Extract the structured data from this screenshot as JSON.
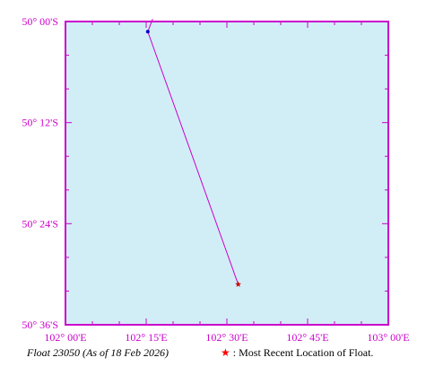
{
  "map": {
    "lon_range": [
      102.0,
      103.0
    ],
    "lat_range": [
      -50.6,
      -50.0
    ],
    "background_color": "#d1eef7",
    "frame_color": "#cc00cc",
    "x_tick_labels": [
      "102° 00'E",
      "102° 15'E",
      "102° 30'E",
      "102° 45'E",
      "103° 00'E"
    ],
    "x_tick_values": [
      102.0,
      102.25,
      102.5,
      102.75,
      103.0
    ],
    "y_tick_labels": [
      "50° 00'S",
      "50° 12'S",
      "50° 24'S",
      "50° 36'S"
    ],
    "y_tick_values": [
      -50.0,
      -50.2,
      -50.4,
      -50.6
    ]
  },
  "track": {
    "color": "#cc00cc",
    "points": [
      {
        "lon": 102.27,
        "lat": -49.995
      },
      {
        "lon": 102.255,
        "lat": -50.02
      },
      {
        "lon": 102.535,
        "lat": -50.52
      }
    ],
    "start_point": {
      "lon": 102.255,
      "lat": -50.02,
      "color": "#0000cc"
    },
    "latest_position": {
      "lon": 102.535,
      "lat": -50.52,
      "color": "#cc0000"
    }
  },
  "footer": {
    "caption": "Float 23050 (As of 18 Feb 2026)",
    "legend_symbol": "★",
    "legend_text": ": Most Recent Location of Float."
  }
}
